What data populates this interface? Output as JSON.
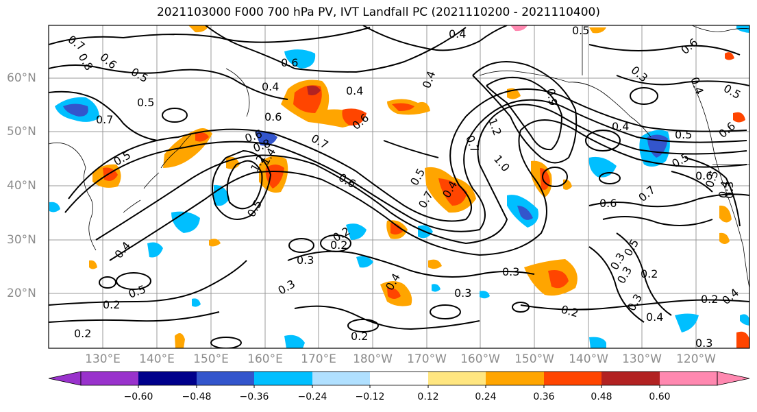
{
  "title": "2021103000 F000 700 hPa PV, IVT Landfall PC (2021110200 - 2021110400)",
  "lat_labels": [
    "60°N",
    "50°N",
    "40°N",
    "30°N",
    "20°N"
  ],
  "lon_labels": [
    "130°E",
    "140°E",
    "150°E",
    "160°E",
    "170°E",
    "180°W",
    "170°W",
    "160°W",
    "150°W",
    "140°W",
    "130°W",
    "120°W"
  ],
  "colorbar": {
    "ticks": [
      "−0.60",
      "−0.48",
      "−0.36",
      "−0.24",
      "−0.12",
      "0.12",
      "0.24",
      "0.36",
      "0.48",
      "0.60"
    ],
    "colors": [
      "#9932cc",
      "#00008b",
      "#3355cc",
      "#00bfff",
      "#b0e0ff",
      "#ffffff",
      "#ffe680",
      "#ffa500",
      "#ff4500",
      "#b22222",
      "#ff88b0"
    ]
  },
  "contour_labels": [
    "0.7",
    "0.8",
    "0.6",
    "0.5",
    "0.7",
    "0.4",
    "0.5",
    "0.6",
    "0.4",
    "0.6",
    "0.4",
    "0.6",
    "0.4",
    "0.5",
    "0.6",
    "0.3",
    "0.5",
    "0.4",
    "0.5",
    "0.6",
    "0.7",
    "0.5",
    "0.6",
    "0.8",
    "0.7",
    "1.2",
    "1.0",
    "0.9",
    "0.4",
    "1.2",
    "1.4",
    "0.5",
    "0.6",
    "0.4",
    "0.7",
    "0.5",
    "0.6",
    "0.4",
    "0.5",
    "0.6",
    "0.7",
    "0.5",
    "0.3",
    "0.2",
    "0.3",
    "0.4",
    "0.5",
    "0.2",
    "0.3",
    "0.3",
    "0.3",
    "0.2",
    "0.3",
    "0.2",
    "0.4",
    "0.3",
    "0.2",
    "0.4",
    "0.5",
    "0.3",
    "0.2",
    "0.4",
    "0.2",
    "0.2",
    "0.3"
  ]
}
